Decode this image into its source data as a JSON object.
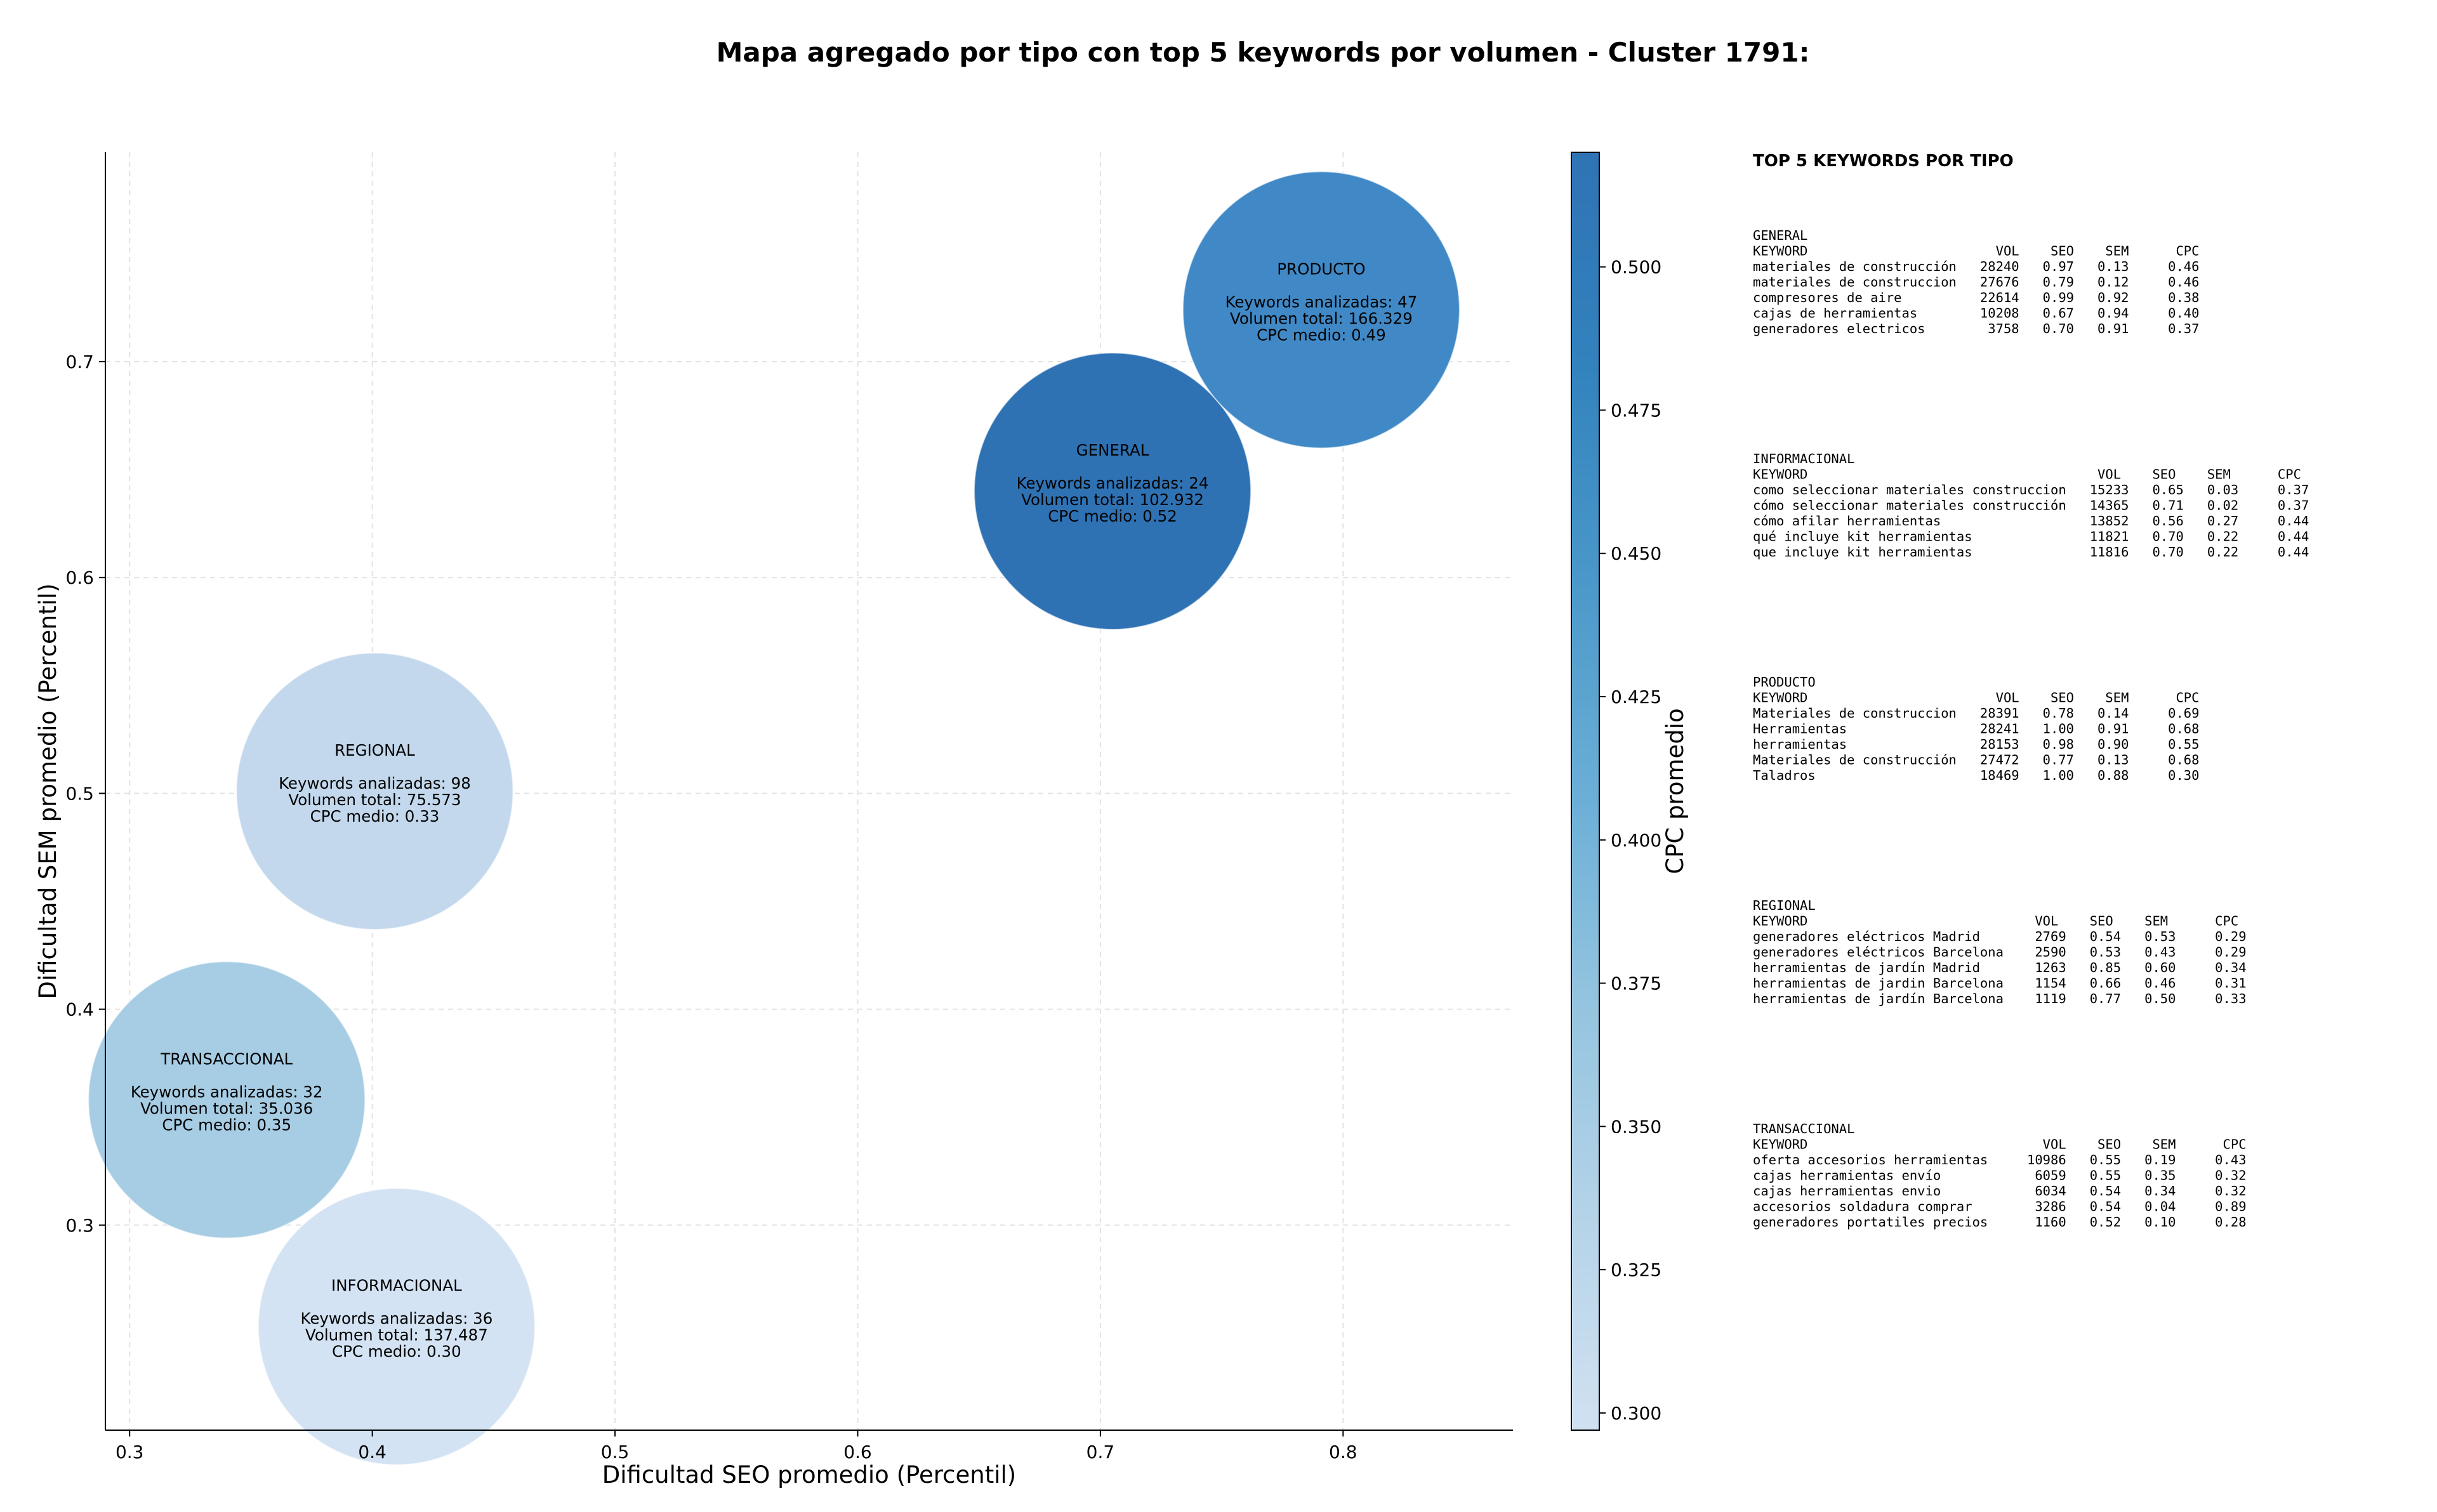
{
  "chart_data": {
    "type": "scatter",
    "title": "Mapa agregado por tipo con top 5 keywords por volumen - Cluster 1791:",
    "xlabel": "Dificultad SEO promedio (Percentil)",
    "ylabel": "Dificultad SEM promedio (Percentil)",
    "xlim": [
      0.29,
      0.87
    ],
    "ylim": [
      0.205,
      0.797
    ],
    "x_ticks": [
      "0.3",
      "0.4",
      "0.5",
      "0.6",
      "0.7",
      "0.8"
    ],
    "y_ticks": [
      "0.3",
      "0.4",
      "0.5",
      "0.6",
      "0.7"
    ],
    "grid": true,
    "colorbar": {
      "label": "CPC promedio",
      "min": 0.297,
      "max": 0.52,
      "ticks": [
        "0.300",
        "0.325",
        "0.350",
        "0.375",
        "0.400",
        "0.425",
        "0.450",
        "0.475",
        "0.500"
      ]
    },
    "bubble_label_templates": {
      "keywords": "Keywords analizadas: ",
      "volume": "Volumen total: ",
      "cpc": "CPC medio: "
    },
    "bubbles": [
      {
        "name": "GENERAL",
        "x": 0.705,
        "y": 0.64,
        "keywords": "24",
        "volume": "102.932",
        "cpc": "0.52",
        "cpc_value": 0.52
      },
      {
        "name": "INFORMACIONAL",
        "x": 0.41,
        "y": 0.253,
        "keywords": "36",
        "volume": "137.487",
        "cpc": "0.30",
        "cpc_value": 0.3
      },
      {
        "name": "PRODUCTO",
        "x": 0.791,
        "y": 0.724,
        "keywords": "47",
        "volume": "166.329",
        "cpc": "0.49",
        "cpc_value": 0.49
      },
      {
        "name": "REGIONAL",
        "x": 0.401,
        "y": 0.501,
        "keywords": "98",
        "volume": "75.573",
        "cpc": "0.33",
        "cpc_value": 0.33
      },
      {
        "name": "TRANSACCIONAL",
        "x": 0.34,
        "y": 0.358,
        "keywords": "32",
        "volume": "35.036",
        "cpc": "0.35",
        "cpc_value": 0.35
      }
    ],
    "side_panel": {
      "title": "TOP 5 KEYWORDS POR TIPO",
      "sections": [
        {
          "header": "GENERAL",
          "lines": [
            "KEYWORD                        VOL    SEO    SEM      CPC",
            "materiales de construcción   28240   0.97   0.13     0.46",
            "materiales de construccion   27676   0.79   0.12     0.46",
            "compresores de aire          22614   0.99   0.92     0.38",
            "cajas de herramientas        10208   0.67   0.94     0.40",
            "generadores electricos        3758   0.70   0.91     0.37"
          ]
        },
        {
          "header": "INFORMACIONAL",
          "lines": [
            "KEYWORD                                     VOL    SEO    SEM      CPC",
            "como seleccionar materiales construccion   15233   0.65   0.03     0.37",
            "cómo seleccionar materiales construcción   14365   0.71   0.02     0.37",
            "cómo afilar herramientas                   13852   0.56   0.27     0.44",
            "qué incluye kit herramientas               11821   0.70   0.22     0.44",
            "que incluye kit herramientas               11816   0.70   0.22     0.44"
          ]
        },
        {
          "header": "PRODUCTO",
          "lines": [
            "KEYWORD                        VOL    SEO    SEM      CPC",
            "Materiales de construccion   28391   0.78   0.14     0.69",
            "Herramientas                 28241   1.00   0.91     0.68",
            "herramientas                 28153   0.98   0.90     0.55",
            "Materiales de construcción   27472   0.77   0.13     0.68",
            "Taladros                     18469   1.00   0.88     0.30"
          ]
        },
        {
          "header": "REGIONAL",
          "lines": [
            "KEYWORD                             VOL    SEO    SEM      CPC",
            "generadores eléctricos Madrid       2769   0.54   0.53     0.29",
            "generadores eléctricos Barcelona    2590   0.53   0.43     0.29",
            "herramientas de jardín Madrid       1263   0.85   0.60     0.34",
            "herramientas de jardin Barcelona    1154   0.66   0.46     0.31",
            "herramientas de jardín Barcelona    1119   0.77   0.50     0.33"
          ]
        },
        {
          "header": "TRANSACCIONAL",
          "lines": [
            "KEYWORD                              VOL    SEO    SEM      CPC",
            "oferta accesorios herramientas     10986   0.55   0.19     0.43",
            "cajas herramientas envío            6059   0.55   0.35     0.32",
            "cajas herramientas envio            6034   0.54   0.34     0.32",
            "accesorios soldadura comprar        3286   0.54   0.04     0.89",
            "generadores portatiles precios      1160   0.52   0.10     0.28"
          ]
        }
      ]
    }
  },
  "colors": {
    "bubble_colors": {
      "GENERAL": "#2f72b4",
      "INFORMACIONAL": "#d3e3f3",
      "PRODUCTO": "#4089c6",
      "REGIONAL": "#c3d8ec",
      "TRANSACCIONAL": "#a7cde4"
    },
    "colorbar_stops": [
      "#d0e1f2",
      "#b5d3e8",
      "#94c4df",
      "#6aaed6",
      "#4a98c9",
      "#3282be",
      "#2f73b4"
    ]
  }
}
